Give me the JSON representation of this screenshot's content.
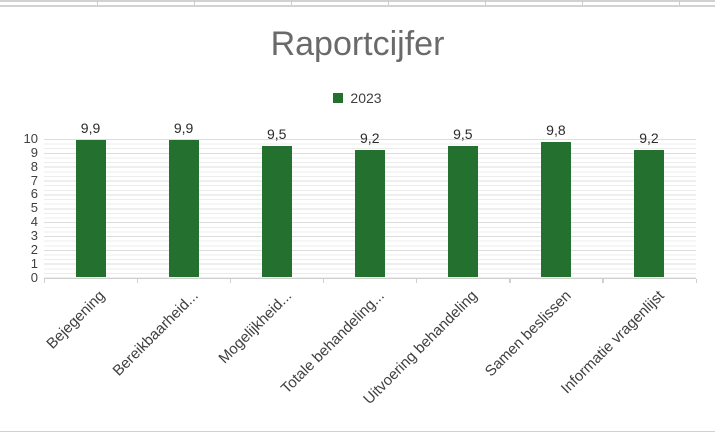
{
  "chart": {
    "title": "Raportcijfer",
    "legend": {
      "label": "2023"
    }
  },
  "colors": {
    "bar_green": "#24702f",
    "title_gray": "#6a6a6a",
    "axis_text_gray": "#3f3f3f",
    "gridline_major": "#dddddd",
    "gridline_minor": "#ececec",
    "axis_line": "#cfcfcf",
    "chart_border": "#d2d2d2"
  },
  "chart_data": {
    "type": "bar",
    "title": "Raportcijfer",
    "categories": [
      "Bejegening",
      "Bereikbaarheid...",
      "Mogelijkheid...",
      "Totale behandeling...",
      "Uitvoering behandeling",
      "Samen beslissen",
      "Informatie vragenlijst"
    ],
    "series": [
      {
        "name": "2023",
        "color": "#24702f",
        "values": [
          9.9,
          9.9,
          9.5,
          9.2,
          9.5,
          9.8,
          9.2
        ],
        "value_labels": [
          "9,9",
          "9,9",
          "9,5",
          "9,2",
          "9,5",
          "9,8",
          "9,2"
        ]
      }
    ],
    "xlabel": "",
    "ylabel": "",
    "ylim": [
      0,
      10
    ],
    "y_tick_labels": [
      "0",
      "1",
      "2",
      "3",
      "4",
      "5",
      "6",
      "7",
      "8",
      "9",
      "10"
    ],
    "grid": "horizontal, major and minor",
    "legend_position": "top-center",
    "value_label_decimal_separator": ","
  }
}
